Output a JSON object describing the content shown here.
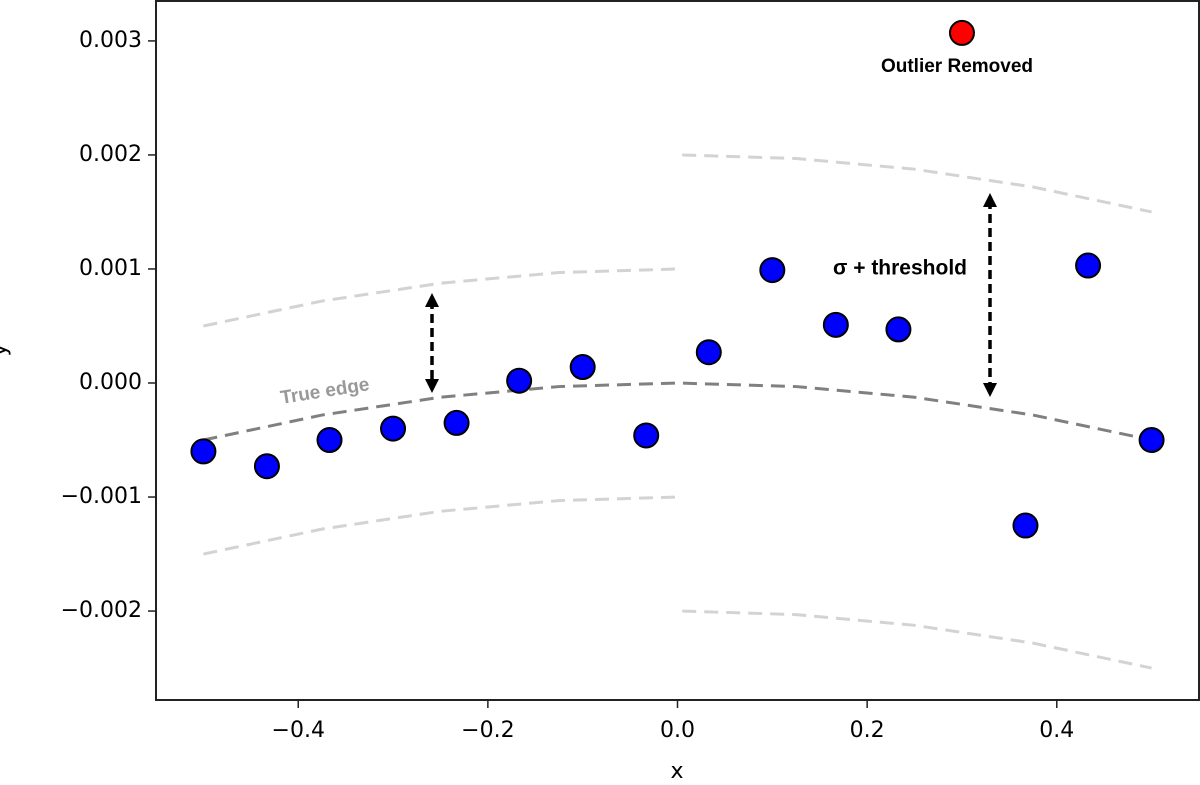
{
  "chart_data": {
    "type": "scatter",
    "xlabel": "x",
    "ylabel": "y",
    "xlim": [
      -0.55,
      0.55
    ],
    "ylim": [
      -0.00278,
      0.00335
    ],
    "xticks": [
      {
        "value": -0.4,
        "label": "−0.4"
      },
      {
        "value": -0.2,
        "label": "−0.2"
      },
      {
        "value": 0,
        "label": "0.0"
      },
      0.2,
      0.4
    ],
    "yticks": [
      {
        "value": -0.002,
        "label": "−0.002"
      },
      {
        "value": -0.001,
        "label": "−0.001"
      },
      {
        "value": 0,
        "label": "0.000"
      },
      0.001,
      0.002,
      0.003
    ],
    "series": [
      {
        "color": "#0000ff",
        "x": [
          -0.5,
          -0.433,
          -0.367,
          -0.3,
          -0.233,
          -0.167,
          -0.1,
          -0.033,
          0.033,
          0.1,
          0.167,
          0.233,
          0.367,
          0.433,
          0.5
        ],
        "values": [
          -0.0006,
          -0.00073,
          -0.0005,
          -0.0004,
          -0.00035,
          2e-05,
          0.00014,
          -0.00046,
          0.00027,
          0.00099,
          0.00051,
          0.00047,
          -0.00125,
          0.00103,
          -0.0005
        ]
      },
      {
        "color": "#ff0000",
        "x": [
          0.3
        ],
        "values": [
          0.00307
        ]
      }
    ],
    "lines": [
      {
        "color": "#808080",
        "x": [
          -0.5,
          -0.375,
          -0.25,
          -0.125,
          0,
          0.125,
          0.25,
          0.375,
          0.5
        ],
        "values": [
          -0.0005,
          -0.00028125,
          -0.000125,
          -3.125e-05,
          0,
          -3.125e-05,
          -0.000125,
          -0.00028125,
          -0.0005
        ]
      },
      {
        "color": "#d3d3d3",
        "x": [
          -0.5,
          -0.375,
          -0.25,
          -0.125,
          0
        ],
        "values": [
          0.0005,
          0.00071875,
          0.000875,
          0.00096875,
          0.001
        ]
      },
      {
        "color": "#d3d3d3",
        "x": [
          -0.5,
          -0.375,
          -0.25,
          -0.125,
          0
        ],
        "values": [
          -0.0015,
          -0.00128125,
          -0.001125,
          -0.00103125,
          -0.001
        ]
      },
      {
        "color": "#d3d3d3",
        "x": [
          0.005,
          0.125,
          0.25,
          0.375,
          0.5
        ],
        "values": [
          0.00199995,
          0.00196875,
          0.001875,
          0.00171875,
          0.0015
        ]
      },
      {
        "color": "#d3d3d3",
        "x": [
          0.005,
          0.125,
          0.25,
          0.375,
          0.5
        ],
        "values": [
          -0.00200005,
          -0.00203125,
          -0.002125,
          -0.00228125,
          -0.0025
        ]
      }
    ],
    "annotations": [
      "Outlier Removed",
      "σ + threshold",
      "True edge"
    ]
  }
}
